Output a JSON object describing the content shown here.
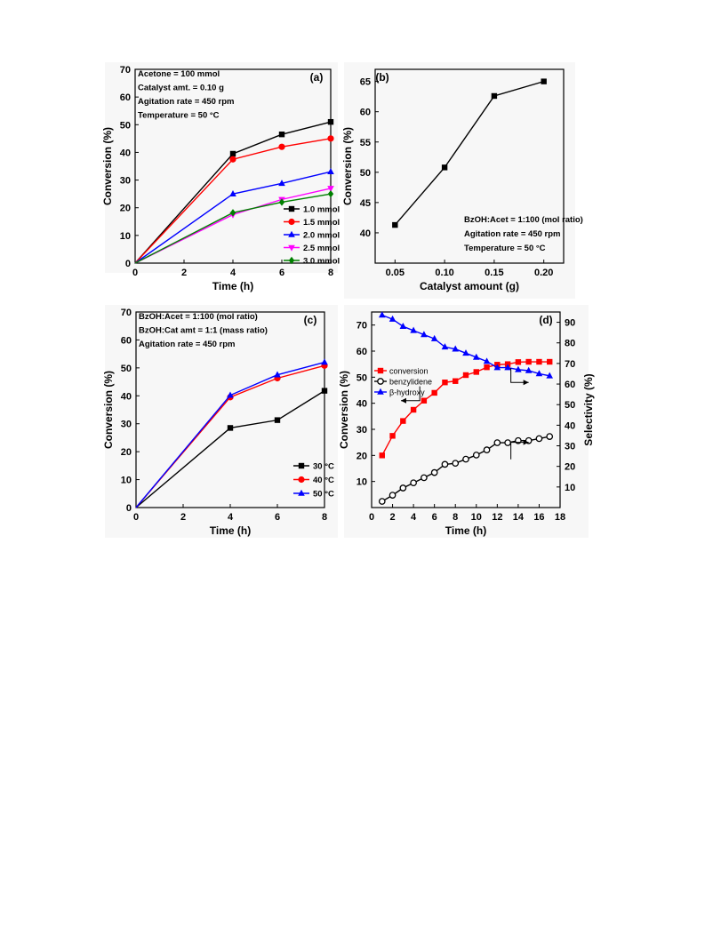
{
  "chart_data": [
    {
      "type": "line",
      "panel_label": "(a)",
      "xlabel": "Time (h)",
      "ylabel": "Conversion (%)",
      "xlim": [
        0,
        8
      ],
      "ylim": [
        0,
        70
      ],
      "xticks": [
        0,
        2,
        4,
        6,
        8
      ],
      "yticks": [
        0,
        10,
        20,
        30,
        40,
        50,
        60,
        70
      ],
      "annotations": [
        "Acetone = 100 mmol",
        "Catalyst amt. = 0.10 g",
        "Agitation rate = 450 rpm",
        "Temperature = 50 °C"
      ],
      "legend_position": "bottom-right",
      "series": [
        {
          "name": "1.0 mmol",
          "color": "#000000",
          "marker": "square",
          "x": [
            0,
            4,
            6,
            8
          ],
          "y": [
            0,
            39.5,
            46.5,
            51
          ]
        },
        {
          "name": "1.5 mmol",
          "color": "#ff0000",
          "marker": "circle",
          "x": [
            0,
            4,
            6,
            8
          ],
          "y": [
            0,
            37.5,
            42,
            45
          ]
        },
        {
          "name": "2.0 mmol",
          "color": "#0000ff",
          "marker": "triangle-up",
          "x": [
            0,
            4,
            6,
            8
          ],
          "y": [
            0,
            25,
            28.8,
            33
          ]
        },
        {
          "name": "2.5 mmol",
          "color": "#ff00ff",
          "marker": "triangle-down",
          "x": [
            0,
            4,
            6,
            8
          ],
          "y": [
            0,
            17.5,
            23,
            27
          ]
        },
        {
          "name": "3.0 mmol",
          "color": "#008000",
          "marker": "diamond",
          "x": [
            0,
            4,
            6,
            8
          ],
          "y": [
            0,
            18.2,
            22,
            25
          ]
        }
      ]
    },
    {
      "type": "line",
      "panel_label": "(b)",
      "xlabel": "Catalyst amount (g)",
      "ylabel": "Conversion (%)",
      "xlim": [
        0.03,
        0.22
      ],
      "ylim": [
        35,
        67
      ],
      "xticks": [
        "0.05",
        "0.10",
        "0.15",
        "0.20"
      ],
      "yticks": [
        40,
        45,
        50,
        55,
        60,
        65
      ],
      "annotations": [
        "BzOH:Acet = 1:100 (mol ratio)",
        "Agitation rate = 450 rpm",
        "Temperature = 50 °C"
      ],
      "series": [
        {
          "name": "",
          "color": "#000000",
          "marker": "square",
          "x": [
            0.05,
            0.1,
            0.15,
            0.2
          ],
          "y": [
            41.3,
            50.8,
            62.6,
            65
          ]
        }
      ]
    },
    {
      "type": "line",
      "panel_label": "(c)",
      "xlabel": "Time (h)",
      "ylabel": "Conversion (%)",
      "xlim": [
        0,
        8
      ],
      "ylim": [
        0,
        70
      ],
      "xticks": [
        0,
        2,
        4,
        6,
        8
      ],
      "yticks": [
        0,
        10,
        20,
        30,
        40,
        50,
        60,
        70
      ],
      "annotations": [
        "BzOH:Acet = 1:100 (mol ratio)",
        "BzOH:Cat amt = 1:1 (mass ratio)",
        "Agitation rate = 450 rpm"
      ],
      "legend_position": "bottom-right",
      "series": [
        {
          "name": "30 °C",
          "color": "#000000",
          "marker": "square",
          "x": [
            0,
            4,
            6,
            8
          ],
          "y": [
            0,
            28.5,
            31.3,
            41.8
          ]
        },
        {
          "name": "40 °C",
          "color": "#ff0000",
          "marker": "circle",
          "x": [
            0,
            4,
            6,
            8
          ],
          "y": [
            0,
            39.5,
            46.3,
            50.8
          ]
        },
        {
          "name": "50 °C",
          "color": "#0000ff",
          "marker": "triangle-up",
          "x": [
            0,
            4,
            6,
            8
          ],
          "y": [
            0,
            40.2,
            47.5,
            52
          ]
        }
      ]
    },
    {
      "type": "line",
      "panel_label": "(d)",
      "xlabel": "Time (h)",
      "ylabel": "Conversion (%)",
      "ylabel_right": "Selectivity (%)",
      "xlim": [
        0,
        18
      ],
      "ylim": [
        0,
        75
      ],
      "ylim_right": [
        0,
        95
      ],
      "xticks": [
        0,
        2,
        4,
        6,
        8,
        10,
        12,
        14,
        16,
        18
      ],
      "yticks": [
        10,
        20,
        30,
        40,
        50,
        60,
        70
      ],
      "yticks_right": [
        10,
        20,
        30,
        40,
        50,
        60,
        70,
        80,
        90
      ],
      "legend_position": "middle-left",
      "series": [
        {
          "name": "conversion",
          "axis": "left",
          "color": "#ff0000",
          "marker": "square",
          "x": [
            1,
            2,
            3,
            4,
            5,
            6,
            7,
            8,
            9,
            10,
            11,
            12,
            13,
            14,
            15,
            16,
            17
          ],
          "y": [
            20,
            27.5,
            33.2,
            37.5,
            41,
            44,
            48,
            48.5,
            50.8,
            52,
            53.8,
            54.8,
            55,
            55.8,
            55.9,
            55.9,
            55.9
          ]
        },
        {
          "name": "benzylidene",
          "axis": "right",
          "color": "#000000",
          "marker": "circle-open",
          "x": [
            1,
            2,
            3,
            4,
            5,
            6,
            7,
            8,
            9,
            10,
            11,
            12,
            13,
            14,
            15,
            16,
            17
          ],
          "y": [
            3,
            6,
            9.5,
            12,
            14.5,
            17,
            21,
            21.5,
            23.5,
            25.5,
            28,
            31.5,
            31.5,
            32.5,
            32.5,
            33.5,
            34.5
          ]
        },
        {
          "name": "β-hydroxy",
          "axis": "right",
          "color": "#0000ff",
          "marker": "triangle-up",
          "x": [
            1,
            2,
            3,
            4,
            5,
            6,
            7,
            8,
            9,
            10,
            11,
            12,
            13,
            14,
            15,
            16,
            17
          ],
          "y": [
            93.5,
            91.5,
            88,
            86,
            84,
            82,
            78,
            77,
            75,
            73,
            71,
            68,
            68,
            67,
            66.5,
            65,
            64
          ]
        }
      ]
    }
  ]
}
